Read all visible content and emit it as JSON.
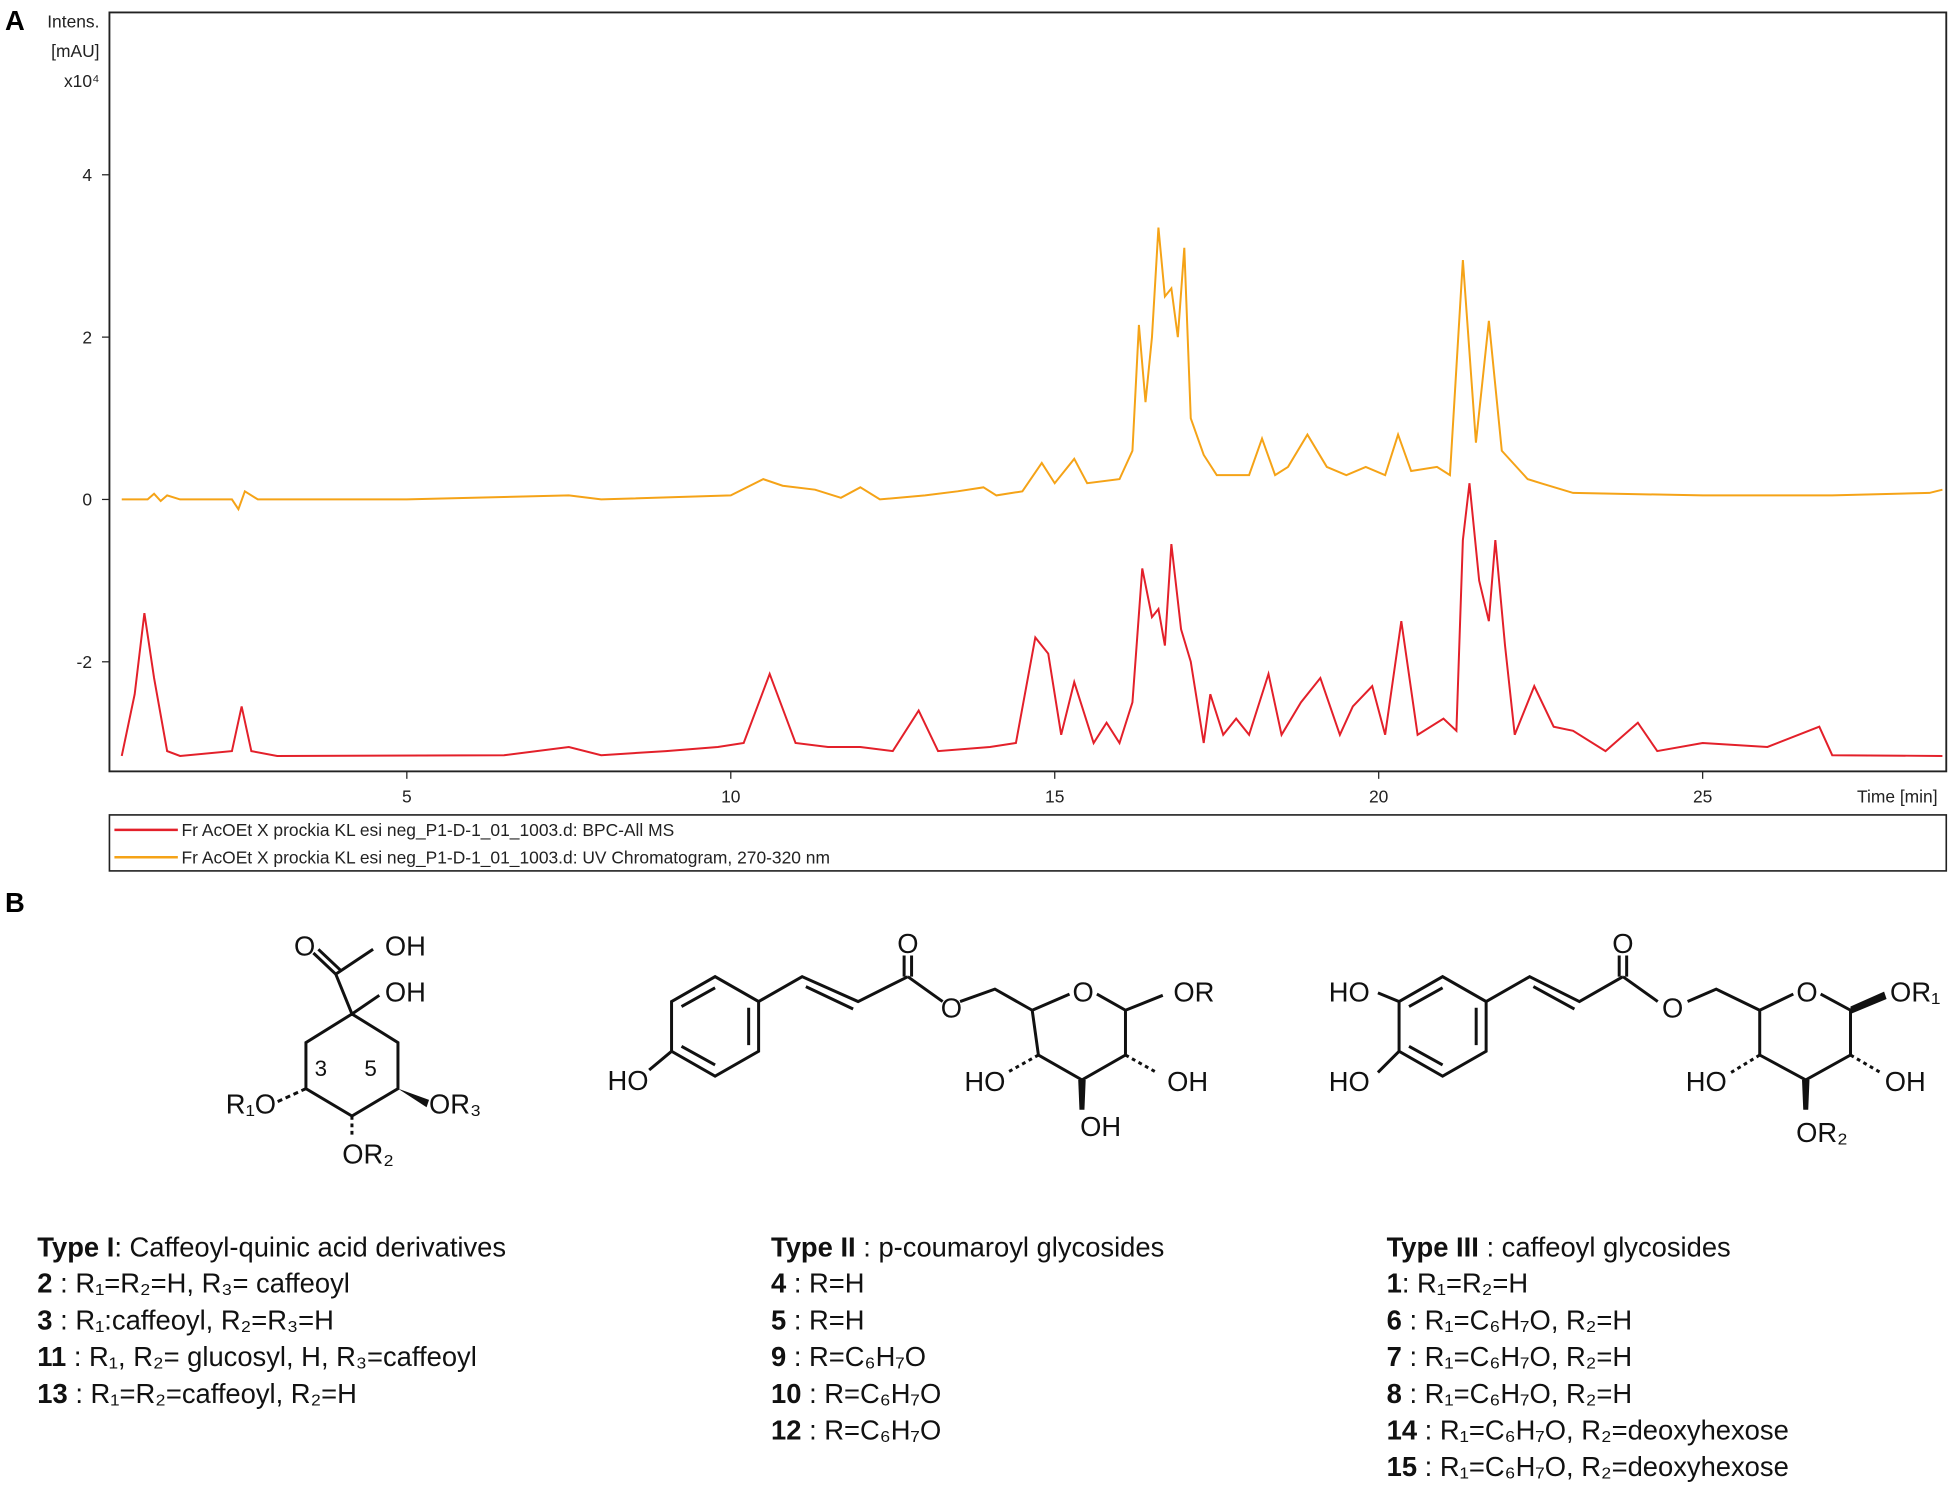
{
  "chart_data": {
    "type": "line",
    "panel_label": "A",
    "y_label_lines": [
      "Intens.",
      "[mAU]",
      "x10⁴"
    ],
    "x_label": "Time [min]",
    "xlim": [
      0.41,
      28.76
    ],
    "ylim": [
      -3.35,
      6.0
    ],
    "xticks": [
      5,
      10,
      15,
      20,
      25
    ],
    "yticks": [
      4,
      2,
      0,
      -2
    ],
    "legend": "below",
    "series": [
      {
        "name": "Fr AcOEt X prockia KL esi neg_P1-D-1_01_1003.d: BPC-All MS",
        "color": "#e3202a",
        "x": [
          0.6,
          0.8,
          0.95,
          1.1,
          1.3,
          1.5,
          2.3,
          2.45,
          2.6,
          3,
          6.5,
          7.5,
          8,
          9,
          9.8,
          10.2,
          10.6,
          11,
          11.5,
          12,
          12.5,
          12.9,
          13.2,
          14,
          14.4,
          14.7,
          14.9,
          15.1,
          15.3,
          15.6,
          15.8,
          16.0,
          16.2,
          16.35,
          16.5,
          16.6,
          16.7,
          16.8,
          16.95,
          17.1,
          17.3,
          17.4,
          17.6,
          17.8,
          18.0,
          18.3,
          18.5,
          18.8,
          19.1,
          19.4,
          19.6,
          19.9,
          20.1,
          20.35,
          20.6,
          21.0,
          21.2,
          21.3,
          21.4,
          21.55,
          21.7,
          21.8,
          21.95,
          22.1,
          22.4,
          22.7,
          23,
          23.5,
          24,
          24.3,
          25,
          26,
          26.8,
          27,
          28.7
        ],
        "values": [
          -3.16,
          -2.4,
          -1.4,
          -2.2,
          -3.1,
          -3.16,
          -3.1,
          -2.55,
          -3.1,
          -3.16,
          -3.15,
          -3.05,
          -3.15,
          -3.1,
          -3.05,
          -3.0,
          -2.15,
          -3.0,
          -3.05,
          -3.05,
          -3.1,
          -2.6,
          -3.1,
          -3.05,
          -3.0,
          -1.7,
          -1.9,
          -2.9,
          -2.25,
          -3.0,
          -2.75,
          -3.0,
          -2.5,
          -0.85,
          -1.45,
          -1.35,
          -1.8,
          -0.55,
          -1.6,
          -2.0,
          -3.0,
          -2.4,
          -2.9,
          -2.7,
          -2.9,
          -2.15,
          -2.9,
          -2.5,
          -2.2,
          -2.9,
          -2.55,
          -2.3,
          -2.9,
          -1.5,
          -2.9,
          -2.7,
          -2.85,
          -0.5,
          0.2,
          -1.0,
          -1.5,
          -0.5,
          -1.8,
          -2.9,
          -2.3,
          -2.8,
          -2.85,
          -3.1,
          -2.75,
          -3.1,
          -3.0,
          -3.05,
          -2.8,
          -3.15,
          -3.16
        ]
      },
      {
        "name": "Fr AcOEt X prockia KL esi neg_P1-D-1_01_1003.d: UV Chromatogram, 270-320 nm",
        "color": "#f5a317",
        "x": [
          0.6,
          1.0,
          1.1,
          1.2,
          1.3,
          1.5,
          2.3,
          2.4,
          2.5,
          2.7,
          5,
          7.5,
          8,
          10,
          10.5,
          10.8,
          11.3,
          11.7,
          12,
          12.3,
          13,
          13.5,
          13.9,
          14.1,
          14.5,
          14.8,
          15,
          15.3,
          15.5,
          16,
          16.2,
          16.3,
          16.4,
          16.5,
          16.6,
          16.7,
          16.8,
          16.9,
          17.0,
          17.1,
          17.3,
          17.5,
          18,
          18.2,
          18.4,
          18.6,
          18.9,
          19.2,
          19.5,
          19.8,
          20.1,
          20.3,
          20.5,
          20.9,
          21.1,
          21.3,
          21.5,
          21.7,
          21.9,
          22.3,
          22.5,
          23,
          25,
          27,
          28.5,
          28.7
        ],
        "values": [
          0,
          0,
          0.07,
          -0.02,
          0.05,
          0,
          0,
          -0.12,
          0.1,
          0,
          0,
          0.05,
          0,
          0.05,
          0.25,
          0.17,
          0.12,
          0.02,
          0.15,
          0,
          0.05,
          0.1,
          0.15,
          0.05,
          0.1,
          0.45,
          0.2,
          0.5,
          0.2,
          0.25,
          0.6,
          2.15,
          1.2,
          2.0,
          3.35,
          2.5,
          2.6,
          2.0,
          3.1,
          1.0,
          0.55,
          0.3,
          0.3,
          0.75,
          0.3,
          0.4,
          0.8,
          0.4,
          0.3,
          0.4,
          0.3,
          0.8,
          0.35,
          0.4,
          0.3,
          2.95,
          0.7,
          2.2,
          0.6,
          0.25,
          0.2,
          0.08,
          0.05,
          0.05,
          0.08,
          0.12
        ]
      }
    ]
  },
  "panel_b": {
    "label": "B",
    "structures": [
      {
        "labels": [
          "O",
          "OH",
          "OH",
          "3",
          "5",
          "R₁O",
          "OR₃",
          "OR₂"
        ]
      },
      {
        "labels": [
          "HO",
          "O",
          "O",
          "O",
          "OR",
          "HO",
          "OH",
          "OH"
        ]
      },
      {
        "labels": [
          "HO",
          "HO",
          "O",
          "O",
          "O",
          "OR₁",
          "HO",
          "OH",
          "OR₂"
        ]
      }
    ],
    "types": [
      {
        "title": "Type I",
        "subtitle": ": Caffeoyl-quinic acid derivatives",
        "entries": [
          {
            "num": "2",
            "text": " : R₁=R₂=H, R₃= caffeoyl"
          },
          {
            "num": "3",
            "text": " : R₁:caffeoyl, R₂=R₃=H"
          },
          {
            "num": "11",
            "text": " : R₁, R₂= glucosyl, H, R₃=caffeoyl"
          },
          {
            "num": "13",
            "text": " : R₁=R₂=caffeoyl, R₂=H"
          }
        ]
      },
      {
        "title": "Type II",
        "subtitle": " : p-coumaroyl glycosides",
        "entries": [
          {
            "num": "4",
            "text": " : R=H"
          },
          {
            "num": "5",
            "text": " : R=H"
          },
          {
            "num": "9",
            "text": " : R=C₆H₇O"
          },
          {
            "num": "10",
            "text": " : R=C₆H₇O"
          },
          {
            "num": "12",
            "text": " : R=C₆H₇O"
          }
        ]
      },
      {
        "title": "Type III",
        "subtitle": " : caffeoyl glycosides",
        "entries": [
          {
            "num": "1",
            "text": ": R₁=R₂=H"
          },
          {
            "num": "6",
            "text": " : R₁=C₆H₇O, R₂=H"
          },
          {
            "num": "7",
            "text": " : R₁=C₆H₇O, R₂=H"
          },
          {
            "num": "8",
            "text": " : R₁=C₆H₇O, R₂=H"
          },
          {
            "num": "14",
            "text": " : R₁=C₆H₇O, R₂=deoxyhexose"
          },
          {
            "num": "15",
            "text": " :  R₁=C₆H₇O, R₂=deoxyhexose"
          }
        ]
      }
    ]
  }
}
